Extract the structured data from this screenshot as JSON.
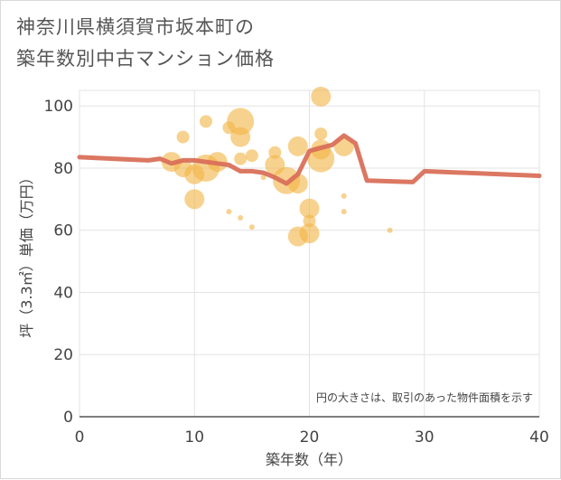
{
  "title_line1": "神奈川県横須賀市坂本町の",
  "title_line2": "築年数別中古マンション価格",
  "chart_data": {
    "type": "scatter",
    "xlabel": "築年数（年）",
    "ylabel": "坪（3.3㎡）単価（万円）",
    "xlim": [
      0,
      40
    ],
    "ylim": [
      0,
      105
    ],
    "xticks": [
      0,
      10,
      20,
      30,
      40
    ],
    "yticks": [
      0,
      20,
      40,
      60,
      80,
      100
    ],
    "grid": true,
    "annotation": "円の大きさは、取引のあった物件面積を示す",
    "colors": {
      "bubble": "#f1b445",
      "line": "#d9705a",
      "grid": "#e3e3e3"
    },
    "bubbles": [
      {
        "x": 8,
        "y": 82,
        "s": 11
      },
      {
        "x": 9,
        "y": 80,
        "s": 10
      },
      {
        "x": 9,
        "y": 90,
        "s": 7
      },
      {
        "x": 10,
        "y": 78,
        "s": 11
      },
      {
        "x": 10,
        "y": 70,
        "s": 11
      },
      {
        "x": 11,
        "y": 80,
        "s": 15
      },
      {
        "x": 11,
        "y": 95,
        "s": 7
      },
      {
        "x": 12,
        "y": 82,
        "s": 11
      },
      {
        "x": 13,
        "y": 93,
        "s": 7
      },
      {
        "x": 13,
        "y": 66,
        "s": 3
      },
      {
        "x": 14,
        "y": 95,
        "s": 15
      },
      {
        "x": 14,
        "y": 90,
        "s": 11
      },
      {
        "x": 14,
        "y": 83,
        "s": 7
      },
      {
        "x": 14,
        "y": 64,
        "s": 3
      },
      {
        "x": 15,
        "y": 84,
        "s": 7
      },
      {
        "x": 15,
        "y": 61,
        "s": 3
      },
      {
        "x": 16,
        "y": 77,
        "s": 3
      },
      {
        "x": 17,
        "y": 85,
        "s": 7
      },
      {
        "x": 17,
        "y": 81,
        "s": 11
      },
      {
        "x": 18,
        "y": 76,
        "s": 15
      },
      {
        "x": 19,
        "y": 75,
        "s": 11
      },
      {
        "x": 19,
        "y": 87,
        "s": 11
      },
      {
        "x": 19,
        "y": 58,
        "s": 11
      },
      {
        "x": 20,
        "y": 67,
        "s": 11
      },
      {
        "x": 20,
        "y": 63,
        "s": 7
      },
      {
        "x": 20,
        "y": 59,
        "s": 11
      },
      {
        "x": 21,
        "y": 103,
        "s": 11
      },
      {
        "x": 21,
        "y": 91,
        "s": 7
      },
      {
        "x": 21,
        "y": 86,
        "s": 11
      },
      {
        "x": 21,
        "y": 83,
        "s": 15
      },
      {
        "x": 23,
        "y": 87,
        "s": 11
      },
      {
        "x": 23,
        "y": 71,
        "s": 3
      },
      {
        "x": 23,
        "y": 66,
        "s": 3
      },
      {
        "x": 27,
        "y": 60,
        "s": 3
      }
    ],
    "line": {
      "x": [
        0,
        6,
        7,
        8,
        9,
        10,
        11,
        12,
        13,
        14,
        15,
        16,
        17,
        18,
        19,
        20,
        21,
        22,
        23,
        24,
        25,
        29,
        30,
        40
      ],
      "y": [
        83.5,
        82.5,
        83,
        81.5,
        82.5,
        82.5,
        82,
        81.5,
        81,
        79,
        79,
        78.5,
        77,
        75,
        78,
        85.5,
        86.5,
        87.5,
        90.5,
        88,
        76,
        75.5,
        79,
        77.5
      ]
    }
  }
}
